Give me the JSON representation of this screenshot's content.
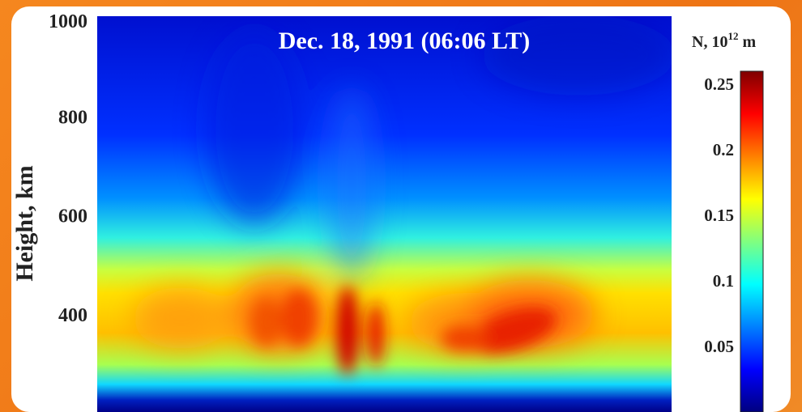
{
  "chart_data": {
    "type": "heatmap",
    "title": "Dec. 18, 1991 (06:06 LT)",
    "ylabel": "Height, km",
    "xlabel": "",
    "y_ticks": [
      "1000",
      "800",
      "600",
      "400"
    ],
    "ylim": [
      200,
      1000
    ],
    "colorbar": {
      "label_main": "N, 10",
      "label_sup": "12",
      "label_unit": " m",
      "ticks": [
        "0.25",
        "0.2",
        "0.15",
        "0.1",
        "0.05"
      ],
      "range": [
        0,
        0.26
      ],
      "colormap": [
        "#00007f",
        "#0000ff",
        "#0080ff",
        "#00ffff",
        "#80ff80",
        "#ffff00",
        "#ff8000",
        "#ff0000",
        "#7f0000"
      ]
    },
    "peak_height_km": 370,
    "background_density": 0.02,
    "peak_density": 0.25
  }
}
